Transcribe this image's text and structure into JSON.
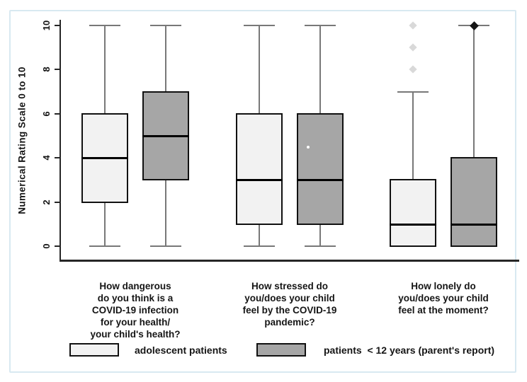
{
  "figure": {
    "border_color": "#d8e9f1",
    "background_color": "#ffffff"
  },
  "chart_data": {
    "type": "boxplot",
    "title": "",
    "xlabel": "",
    "ylabel": "Numerical Rating Scale 0 to 10",
    "ylim": [
      0,
      10
    ],
    "yticks": [
      0,
      2,
      4,
      6,
      8,
      10
    ],
    "grid": false,
    "legend_position": "bottom",
    "categories": [
      "How dangerous\ndo you think is a\nCOVID-19 infection\nfor your health/\nyour child's health?",
      "How stressed do\nyou/does your child\nfeel by the COVID-19\npandemic?",
      "How lonely do\nyou/does your child\nfeel at the moment?"
    ],
    "series": [
      {
        "name": "adolescent patients",
        "box_fill": "#f2f2f2",
        "outlier_color": "#d9d9d9",
        "boxes": [
          {
            "min": 0,
            "q1": 2,
            "median": 4,
            "q3": 6,
            "max": 10,
            "outliers": []
          },
          {
            "min": 0,
            "q1": 1,
            "median": 3,
            "q3": 6,
            "max": 10,
            "outliers": []
          },
          {
            "min": 0,
            "q1": 0,
            "median": 1,
            "q3": 3,
            "max": 7,
            "outliers": [
              8,
              9,
              10
            ]
          }
        ]
      },
      {
        "name": "patients  < 12 years (parent's report)",
        "box_fill": "#a6a6a6",
        "outlier_color": "#141414",
        "boxes": [
          {
            "min": 0,
            "q1": 3,
            "median": 5,
            "q3": 7,
            "max": 10,
            "outliers": []
          },
          {
            "min": 0,
            "q1": 1,
            "median": 3,
            "q3": 6,
            "max": 10,
            "outliers": [],
            "mean_dot": 4.5
          },
          {
            "min": 0,
            "q1": 0,
            "median": 1,
            "q3": 4,
            "max": 10,
            "outliers": [
              10
            ]
          }
        ]
      }
    ],
    "legend": [
      {
        "label": "adolescent patients",
        "swatch_color": "#f2f2f2"
      },
      {
        "label": "patients  < 12 years (parent's report)",
        "swatch_color": "#a6a6a6"
      }
    ]
  }
}
